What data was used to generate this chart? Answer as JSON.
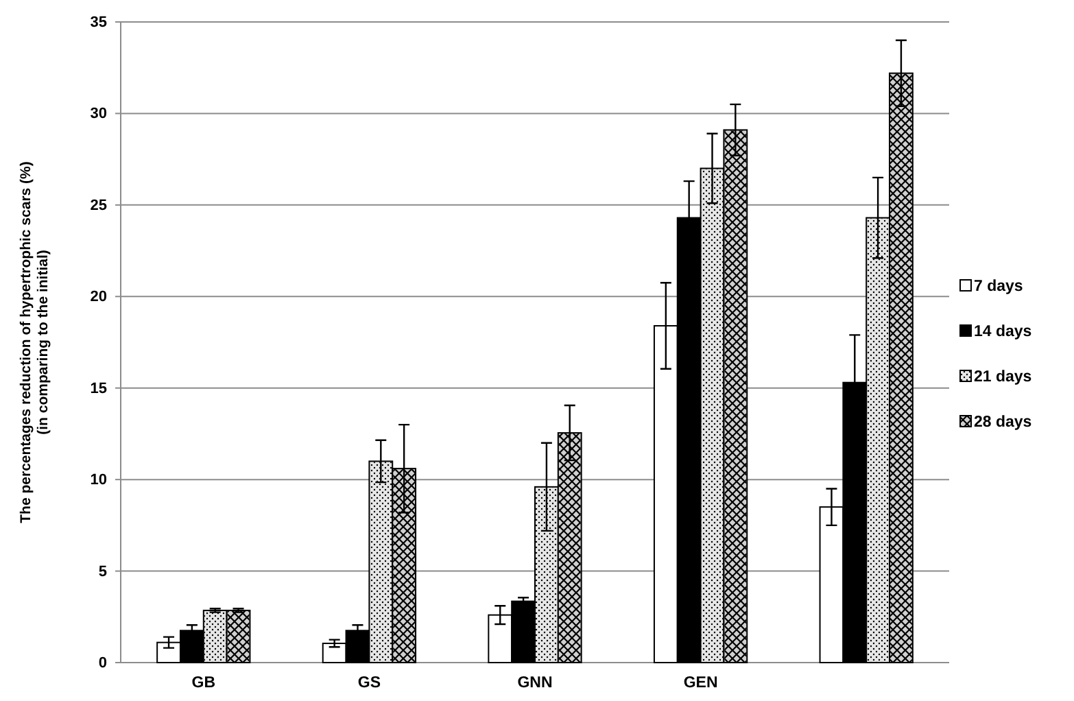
{
  "chart_data": {
    "type": "bar",
    "ylabel": "The percentages reduction of hypertrophic scars (%)\n(in comparing to the initial)",
    "categories": [
      "GB",
      "GS",
      "GNN",
      "GEN",
      null
    ],
    "series": [
      {
        "name": "7 days",
        "color": "#ffffff",
        "values": [
          1.1,
          1.05,
          2.6,
          18.4,
          8.5
        ],
        "errors": [
          0.3,
          0.2,
          0.5,
          2.35,
          1.0
        ]
      },
      {
        "name": "14 days",
        "color": "#000000",
        "values": [
          1.75,
          1.75,
          3.35,
          24.3,
          15.3
        ],
        "errors": [
          0.3,
          0.3,
          0.2,
          2.0,
          2.6
        ]
      },
      {
        "name": "21 days",
        "color": "#e6e6e6",
        "values": [
          2.85,
          11.0,
          9.6,
          27.0,
          24.3
        ],
        "errors": [
          0.1,
          1.15,
          2.4,
          1.9,
          2.2
        ]
      },
      {
        "name": "28 days",
        "color": "#d0d0d0",
        "values": [
          2.85,
          10.6,
          12.55,
          29.1,
          32.2
        ],
        "errors": [
          0.1,
          2.4,
          1.5,
          1.4,
          1.8
        ]
      }
    ],
    "ylim": [
      0,
      35
    ],
    "yticks": [
      0,
      5,
      10,
      15,
      20,
      25,
      30,
      35
    ],
    "grid": "y",
    "legend": "right"
  }
}
